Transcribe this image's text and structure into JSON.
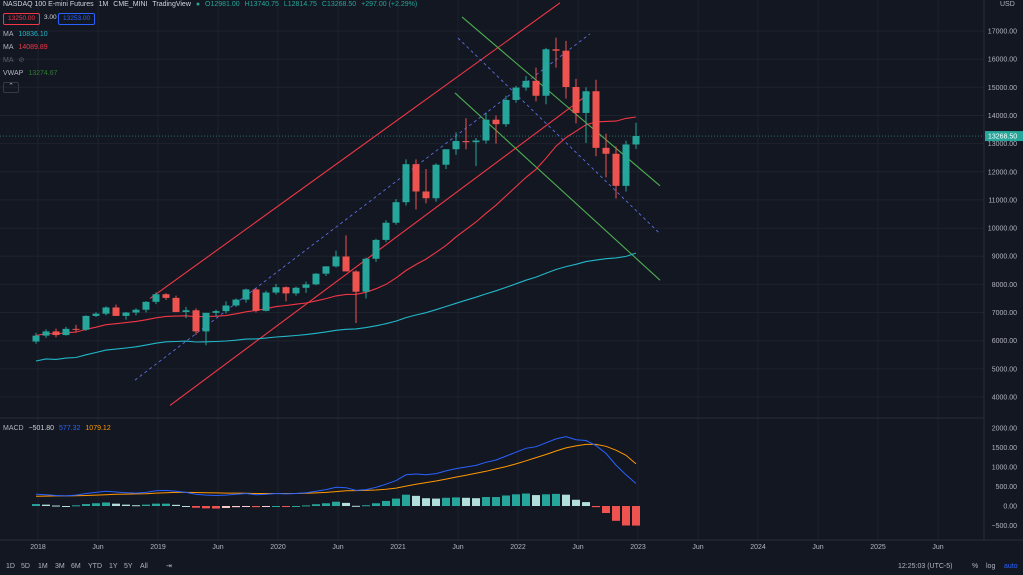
{
  "header": {
    "symbol": "NASDAQ 100 E-mini Futures",
    "interval": "1M",
    "exchange": "CME_MINI",
    "source": "TradingView",
    "open": "O12981.00",
    "high": "H13740.75",
    "low": "L12814.75",
    "close": "C13268.50",
    "change": "+297.00 (+2.29%)"
  },
  "trade": {
    "sell": "13250.00",
    "spread": "3.00",
    "buy": "13253.00"
  },
  "indicators": {
    "ma1_label": "MA",
    "ma1_value": "10836.10",
    "ma2_label": "MA",
    "ma2_value": "14089.89",
    "ma3_label": "MA",
    "vwap_label": "VWAP",
    "vwap_value": "13274.67",
    "macd_label": "MACD",
    "macd_hist": "−501.80",
    "macd_line": "577.32",
    "macd_signal": "1079.12"
  },
  "colors": {
    "background": "#131722",
    "up": "#26a69a",
    "down": "#ef5350",
    "ma_teal": "#22b7c9",
    "ma_red": "#f23645",
    "channel_red": "#f23645",
    "channel_green": "#4caf50",
    "dotted_blue": "#5b6ee1",
    "macd_blue": "#2962ff",
    "signal_orange": "#ff9800",
    "hist_up_light": "#b2dfdb",
    "hist_down_light": "#ffcdd2"
  },
  "bottom_bar": {
    "timeframes": [
      "1D",
      "5D",
      "1M",
      "3M",
      "6M",
      "YTD",
      "1Y",
      "5Y",
      "All"
    ],
    "clock": "12:25:03 (UTC-5)",
    "percent": "%",
    "log": "log",
    "auto": "auto"
  },
  "chart_data": [
    {
      "type": "candlestick",
      "title": "NASDAQ 100 E-mini Futures",
      "price_unit": "USD",
      "current_price": "13268.50",
      "ylim": [
        3500,
        17500
      ],
      "y_ticks": [
        "17000.00",
        "16000.00",
        "15000.00",
        "14000.00",
        "13000.00",
        "12000.00",
        "11000.00",
        "10000.00",
        "9000.00",
        "8000.00",
        "7000.00",
        "6000.00",
        "5000.00",
        "4000.00"
      ],
      "x_ticks": [
        "2018",
        "Jun",
        "2019",
        "Jun",
        "2020",
        "Jun",
        "2021",
        "Jun",
        "2022",
        "Jun",
        "2023",
        "Jun",
        "2024",
        "Jun",
        "2025",
        "Jun"
      ],
      "candles": [
        [
          5970,
          6280,
          5890,
          6180
        ],
        [
          6180,
          6400,
          6100,
          6330
        ],
        [
          6330,
          6430,
          6120,
          6200
        ],
        [
          6200,
          6490,
          6180,
          6420
        ],
        [
          6420,
          6560,
          6300,
          6390
        ],
        [
          6390,
          6900,
          6350,
          6880
        ],
        [
          6880,
          7010,
          6840,
          6960
        ],
        [
          6960,
          7220,
          6900,
          7180
        ],
        [
          7180,
          7280,
          6880,
          6880
        ],
        [
          6880,
          7020,
          6750,
          7000
        ],
        [
          7000,
          7150,
          6900,
          7100
        ],
        [
          7100,
          7400,
          7000,
          7380
        ],
        [
          7380,
          7720,
          7300,
          7650
        ],
        [
          7650,
          7690,
          7450,
          7520
        ],
        [
          7520,
          7600,
          7010,
          7020
        ],
        [
          7020,
          7200,
          6800,
          7080
        ],
        [
          7080,
          7150,
          6200,
          6330
        ],
        [
          6330,
          6960,
          5840,
          6990
        ],
        [
          6990,
          7100,
          6870,
          7050
        ],
        [
          7050,
          7400,
          6960,
          7250
        ],
        [
          7250,
          7500,
          7200,
          7460
        ],
        [
          7460,
          7850,
          7350,
          7820
        ],
        [
          7820,
          7860,
          7000,
          7060
        ],
        [
          7060,
          7780,
          7040,
          7710
        ],
        [
          7710,
          8020,
          7640,
          7900
        ],
        [
          7900,
          7930,
          7400,
          7680
        ],
        [
          7680,
          7920,
          7600,
          7880
        ],
        [
          7880,
          8100,
          7700,
          8000
        ],
        [
          8000,
          8400,
          7970,
          8380
        ],
        [
          8380,
          8650,
          8300,
          8640
        ],
        [
          8640,
          9200,
          8600,
          8990
        ],
        [
          8990,
          9740,
          8550,
          8460
        ],
        [
          8460,
          8500,
          6630,
          7740
        ],
        [
          7740,
          8950,
          7500,
          8910
        ],
        [
          8910,
          9620,
          8800,
          9580
        ],
        [
          9580,
          10280,
          9500,
          10190
        ],
        [
          10190,
          11030,
          10120,
          10920
        ],
        [
          10920,
          12440,
          10800,
          12270
        ],
        [
          12270,
          12440,
          10660,
          11300
        ],
        [
          11300,
          12100,
          10880,
          11060
        ],
        [
          11060,
          12300,
          10940,
          12250
        ],
        [
          12250,
          12780,
          12100,
          12800
        ],
        [
          12800,
          13400,
          12600,
          13090
        ],
        [
          13090,
          13900,
          12800,
          13050
        ],
        [
          13050,
          13200,
          12200,
          13110
        ],
        [
          13110,
          14100,
          13000,
          13850
        ],
        [
          13850,
          14000,
          13000,
          13690
        ],
        [
          13690,
          14700,
          13600,
          14550
        ],
        [
          14550,
          15050,
          14450,
          14990
        ],
        [
          14990,
          15400,
          14880,
          15230
        ],
        [
          15230,
          15700,
          14500,
          14700
        ],
        [
          14700,
          16400,
          14400,
          16350
        ],
        [
          16350,
          16760,
          15700,
          16300
        ],
        [
          16300,
          16650,
          14600,
          15010
        ],
        [
          15010,
          15300,
          13720,
          14090
        ],
        [
          14090,
          15000,
          13020,
          14860
        ],
        [
          14860,
          15270,
          12550,
          12850
        ],
        [
          12850,
          13350,
          11800,
          12640
        ],
        [
          12640,
          12900,
          11050,
          11500
        ],
        [
          11500,
          13100,
          11300,
          12970
        ],
        [
          12970,
          13740,
          12810,
          13270
        ]
      ]
    },
    {
      "type": "line",
      "title": "MACD",
      "y_ticks": [
        "2000.00",
        "1500.00",
        "1000.00",
        "500.00",
        "0.00",
        "−500.00"
      ],
      "ylim": [
        -650,
        2200
      ],
      "series": [
        {
          "name": "MACD",
          "values": [
            300,
            290,
            270,
            260,
            280,
            320,
            350,
            380,
            360,
            340,
            330,
            350,
            390,
            400,
            380,
            350,
            300,
            280,
            270,
            280,
            300,
            320,
            290,
            300,
            320,
            310,
            320,
            340,
            380,
            420,
            480,
            470,
            400,
            420,
            480,
            560,
            650,
            800,
            820,
            800,
            830,
            900,
            960,
            1000,
            1040,
            1120,
            1180,
            1280,
            1380,
            1480,
            1520,
            1620,
            1720,
            1780,
            1700,
            1680,
            1550,
            1350,
            1050,
            800,
            577
          ]
        },
        {
          "name": "Signal",
          "values": [
            250,
            255,
            258,
            260,
            262,
            270,
            280,
            290,
            300,
            305,
            310,
            315,
            330,
            340,
            350,
            350,
            345,
            340,
            335,
            330,
            330,
            325,
            320,
            320,
            320,
            320,
            320,
            325,
            335,
            350,
            370,
            390,
            395,
            400,
            410,
            430,
            460,
            510,
            560,
            600,
            640,
            690,
            740,
            790,
            840,
            890,
            950,
            1010,
            1080,
            1160,
            1240,
            1320,
            1410,
            1490,
            1540,
            1580,
            1580,
            1530,
            1430,
            1300,
            1079
          ]
        },
        {
          "name": "Histogram",
          "values": [
            50,
            35,
            12,
            0,
            18,
            50,
            70,
            90,
            60,
            35,
            20,
            35,
            60,
            60,
            30,
            0,
            -45,
            -60,
            -65,
            -50,
            -30,
            -5,
            -30,
            -20,
            0,
            -10,
            0,
            15,
            45,
            70,
            110,
            80,
            5,
            20,
            70,
            130,
            190,
            290,
            260,
            200,
            190,
            210,
            220,
            210,
            200,
            230,
            230,
            270,
            300,
            320,
            280,
            300,
            310,
            290,
            160,
            100,
            -30,
            -180,
            -380,
            -500,
            -502
          ]
        }
      ]
    }
  ]
}
